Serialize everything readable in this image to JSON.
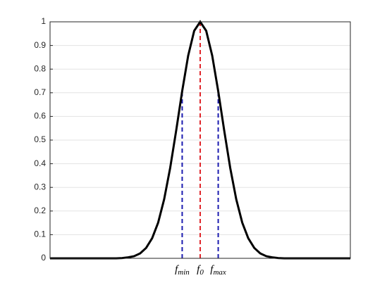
{
  "chart_data": {
    "type": "line",
    "x": [
      0,
      20,
      22,
      24,
      26,
      28,
      30,
      32,
      34,
      36,
      38,
      40,
      42,
      44,
      46,
      48,
      50,
      52,
      54,
      56,
      58,
      60,
      62,
      64,
      66,
      68,
      70,
      72,
      74,
      76,
      78,
      80,
      100
    ],
    "series": [
      {
        "color": "#000000",
        "values": [
          0,
          0,
          0,
          0.001,
          0.004,
          0.009,
          0.021,
          0.044,
          0.085,
          0.151,
          0.25,
          0.382,
          0.54,
          0.707,
          0.857,
          0.962,
          1,
          0.962,
          0.857,
          0.707,
          0.54,
          0.382,
          0.25,
          0.151,
          0.085,
          0.044,
          0.021,
          0.009,
          0.004,
          0.001,
          0,
          0,
          0
        ]
      }
    ],
    "xlim": [
      0,
      100
    ],
    "ylim": [
      0,
      1
    ],
    "yticks": [
      0,
      0.1,
      0.2,
      0.3,
      0.4,
      0.5,
      0.6,
      0.7,
      0.8,
      0.9,
      1
    ],
    "grid": true,
    "markers": [
      {
        "label": "f",
        "subscript": "min",
        "x": 44,
        "y": 0.707,
        "color": "#1c1cb0"
      },
      {
        "label": "f",
        "subscript": "0",
        "x": 50,
        "y": 1,
        "color": "#e0262b"
      },
      {
        "label": "f",
        "subscript": "max",
        "x": 56,
        "y": 0.707,
        "color": "#1c1cb0"
      }
    ]
  }
}
